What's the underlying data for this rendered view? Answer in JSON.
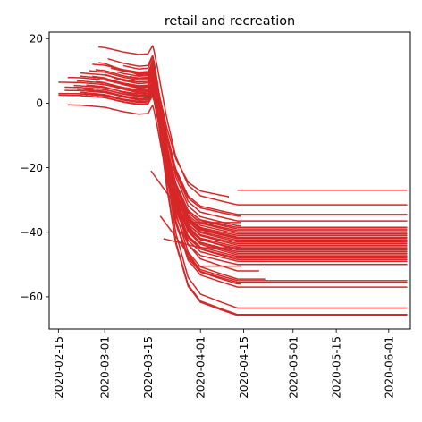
{
  "chart_data": {
    "type": "line",
    "title": "retail and recreation",
    "xlabel": "",
    "ylabel": "",
    "x_range": [
      "2020-02-12",
      "2020-06-08"
    ],
    "ylim": [
      -70,
      22
    ],
    "grid": false,
    "legend": "none",
    "line_color": "#d62728",
    "x_ticks": [
      "2020-02-15",
      "2020-03-01",
      "2020-03-15",
      "2020-04-01",
      "2020-04-15",
      "2020-05-01",
      "2020-05-15",
      "2020-06-01"
    ],
    "y_ticks": [
      20,
      0,
      -20,
      -40,
      -60
    ],
    "series_profile": {
      "x": [
        "2020-02-15",
        "2020-02-22",
        "2020-03-01",
        "2020-03-07",
        "2020-03-12",
        "2020-03-15",
        "2020-03-18",
        "2020-03-21",
        "2020-03-24",
        "2020-03-28",
        "2020-04-01",
        "2020-04-08",
        "2020-04-13"
      ],
      "shape": [
        0,
        0.03,
        0.2,
        0.55,
        0.75,
        0.7,
        -0.6,
        -2.0,
        -3.1,
        -3.9,
        -4.2,
        -4.35,
        -4.45
      ]
    },
    "series": [
      {
        "start": "2020-02-15",
        "base": 3.0,
        "final": -44.5,
        "hold_to": "2020-06-07"
      },
      {
        "start": "2020-02-15",
        "base": 6.5,
        "final": -40.5,
        "hold_to": "2020-06-07"
      },
      {
        "start": "2020-02-15",
        "base": 2.5,
        "final": -48.0,
        "hold_to": "2020-06-07"
      },
      {
        "start": "2020-02-17",
        "base": 4.0,
        "final": -41.5,
        "hold_to": "2020-06-07"
      },
      {
        "start": "2020-02-17",
        "base": 5.0,
        "final": -46.0,
        "hold_to": "2020-06-07"
      },
      {
        "start": "2020-02-18",
        "base": 3.0,
        "final": -38.5,
        "hold_to": "2020-06-07"
      },
      {
        "start": "2020-02-18",
        "base": -0.5,
        "final": -50.0,
        "hold_to": "2020-06-07"
      },
      {
        "start": "2020-02-18",
        "base": 8.0,
        "final": -43.0,
        "hold_to": "2020-06-07"
      },
      {
        "start": "2020-02-20",
        "base": 2.5,
        "final": -45.0,
        "hold_to": "2020-06-07"
      },
      {
        "start": "2020-02-20",
        "base": 5.5,
        "final": -39.5,
        "hold_to": "2020-06-07"
      },
      {
        "start": "2020-02-21",
        "base": 4.5,
        "final": -47.5,
        "hold_to": "2020-06-07"
      },
      {
        "start": "2020-02-21",
        "base": 7.0,
        "final": -42.0,
        "hold_to": "2020-06-07"
      },
      {
        "start": "2020-02-22",
        "base": 3.5,
        "final": -49.0,
        "hold_to": "2020-06-07"
      },
      {
        "start": "2020-02-22",
        "base": 8.5,
        "final": -44.0,
        "hold_to": "2020-06-07"
      },
      {
        "start": "2020-02-22",
        "base": 9.5,
        "final": -40.0,
        "hold_to": "2020-06-07"
      },
      {
        "start": "2020-02-23",
        "base": 3.0,
        "final": -41.0,
        "hold_to": "2020-06-07"
      },
      {
        "start": "2020-02-24",
        "base": 6.0,
        "final": -55.0,
        "hold_to": "2020-06-07"
      },
      {
        "start": "2020-02-24",
        "base": 4.5,
        "final": -55.5,
        "hold_to": "2020-06-07"
      },
      {
        "start": "2020-02-25",
        "base": 10.5,
        "final": -46.5,
        "hold_to": "2020-06-07"
      },
      {
        "start": "2020-02-25",
        "base": 5.0,
        "final": -43.5,
        "hold_to": "2020-06-07"
      },
      {
        "start": "2020-02-26",
        "base": 12.5,
        "final": -36.5,
        "hold_to": "2020-06-07"
      },
      {
        "start": "2020-02-26",
        "base": 9.0,
        "final": -65.5,
        "hold_to": "2020-06-07"
      },
      {
        "start": "2020-02-27",
        "base": 7.5,
        "final": -65.8,
        "hold_to": "2020-06-07"
      },
      {
        "start": "2020-02-27",
        "base": 11.0,
        "final": -47.0,
        "hold_to": "2020-06-07"
      },
      {
        "start": "2020-02-28",
        "base": 18.0,
        "final": -31.5,
        "hold_to": "2020-06-07"
      },
      {
        "start": "2020-02-28",
        "base": 13.5,
        "final": -63.5,
        "hold_to": "2020-06-07"
      },
      {
        "start": "2020-02-29",
        "base": 6.5,
        "final": -42.5,
        "hold_to": "2020-06-07"
      },
      {
        "start": "2020-03-01",
        "base": 10.0,
        "final": -57.0,
        "hold_to": "2020-06-07"
      },
      {
        "start": "2020-03-01",
        "base": 8.0,
        "final": -39.0,
        "hold_to": "2020-06-07"
      },
      {
        "start": "2020-03-02",
        "base": 15.0,
        "final": -45.5,
        "hold_to": "2020-06-07"
      },
      {
        "start": "2020-03-03",
        "base": 12.0,
        "final": -34.5,
        "hold_to": "2020-06-07"
      },
      {
        "start": "2020-03-04",
        "base": 9.5,
        "final": -48.5,
        "hold_to": "2020-06-07"
      },
      {
        "start": "2020-03-05",
        "base": 11.5,
        "final": -41.8,
        "hold_to": "2020-06-07"
      },
      {
        "start": "2020-03-07",
        "base": 14.5,
        "final": -52.0,
        "hold_to": "2020-04-20"
      },
      {
        "start": "2020-03-08",
        "base": 13.0,
        "final": -54.5,
        "hold_to": "2020-04-22"
      },
      {
        "start": "2020-03-09",
        "base": 10.5,
        "final": -35.0,
        "hold_to": "2020-04-14"
      },
      {
        "start": "2020-03-10",
        "base": 12.0,
        "final": -38.0,
        "hold_to": "2020-04-14"
      },
      {
        "start": "2020-03-11",
        "base": 11.0,
        "final": -29.5,
        "hold_to": "2020-04-10"
      },
      {
        "start": "2020-03-12",
        "base": 9.0,
        "final": -56.0,
        "hold_to": "2020-04-14"
      },
      {
        "start": "2020-03-16",
        "base": -21.0,
        "final": -37.0,
        "hold_to": "2020-04-14"
      },
      {
        "start": "2020-03-19",
        "base": -35.0,
        "final": -50.5,
        "hold_to": "2020-04-14"
      },
      {
        "start": "2020-03-20",
        "base": -42.0,
        "final": -44.8,
        "hold_to": "2020-04-14"
      },
      {
        "start": "2020-04-17",
        "base": -27.0,
        "final": -27.0,
        "hold_to": "2020-06-07"
      }
    ]
  }
}
